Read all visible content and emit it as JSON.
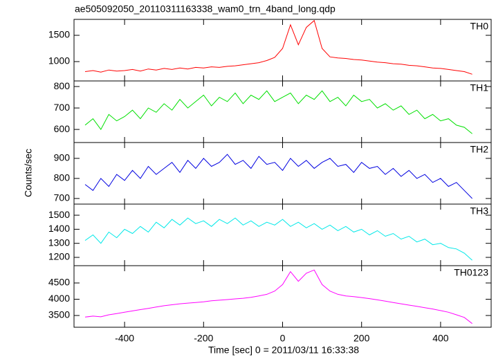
{
  "chart_data": [
    {
      "type": "line",
      "title": "ae505092050_20110311163338_wam0_trn_4band_long.qdp",
      "label": "TH0",
      "color": "#ff0000",
      "xlim": [
        -528,
        528
      ],
      "ylim": [
        632,
        1803
      ],
      "yticks": [
        1000,
        1500
      ],
      "x": [
        -500,
        -480,
        -460,
        -440,
        -420,
        -400,
        -380,
        -360,
        -340,
        -320,
        -300,
        -280,
        -260,
        -240,
        -220,
        -200,
        -180,
        -160,
        -140,
        -120,
        -100,
        -80,
        -60,
        -40,
        -20,
        0,
        20,
        40,
        60,
        80,
        100,
        120,
        140,
        160,
        180,
        200,
        220,
        240,
        260,
        280,
        300,
        320,
        340,
        360,
        380,
        400,
        420,
        440,
        460,
        480
      ],
      "values": [
        810,
        830,
        800,
        840,
        820,
        830,
        850,
        820,
        860,
        840,
        870,
        850,
        880,
        860,
        890,
        880,
        900,
        890,
        910,
        920,
        940,
        960,
        980,
        1020,
        1080,
        1250,
        1700,
        1320,
        1650,
        1780,
        1250,
        1090,
        1070,
        1060,
        1040,
        1030,
        1010,
        990,
        980,
        960,
        950,
        930,
        920,
        900,
        880,
        870,
        850,
        830,
        810,
        760
      ]
    },
    {
      "type": "line",
      "label": "TH1",
      "color": "#00e000",
      "xlim": [
        -528,
        528
      ],
      "ylim": [
        539,
        826
      ],
      "yticks": [
        600,
        700,
        800
      ],
      "x": [
        -500,
        -480,
        -460,
        -440,
        -420,
        -400,
        -380,
        -360,
        -340,
        -320,
        -300,
        -280,
        -260,
        -240,
        -220,
        -200,
        -180,
        -160,
        -140,
        -120,
        -100,
        -80,
        -60,
        -40,
        -20,
        0,
        20,
        40,
        60,
        80,
        100,
        120,
        140,
        160,
        180,
        200,
        220,
        240,
        260,
        280,
        300,
        320,
        340,
        360,
        380,
        400,
        420,
        440,
        460,
        480
      ],
      "values": [
        620,
        650,
        600,
        670,
        640,
        660,
        690,
        650,
        700,
        680,
        720,
        690,
        740,
        700,
        730,
        760,
        710,
        750,
        730,
        770,
        720,
        760,
        740,
        780,
        730,
        750,
        770,
        720,
        760,
        740,
        780,
        730,
        750,
        710,
        760,
        730,
        740,
        700,
        720,
        690,
        710,
        670,
        690,
        650,
        670,
        640,
        650,
        620,
        610,
        580
      ]
    },
    {
      "type": "line",
      "label": "TH2",
      "ylabel": "Counts/sec",
      "color": "#0000e0",
      "xlim": [
        -528,
        528
      ],
      "ylim": [
        672,
        979
      ],
      "yticks": [
        700,
        800,
        900
      ],
      "x": [
        -500,
        -480,
        -460,
        -440,
        -420,
        -400,
        -380,
        -360,
        -340,
        -320,
        -300,
        -280,
        -260,
        -240,
        -220,
        -200,
        -180,
        -160,
        -140,
        -120,
        -100,
        -80,
        -60,
        -40,
        -20,
        0,
        20,
        40,
        60,
        80,
        100,
        120,
        140,
        160,
        180,
        200,
        220,
        240,
        260,
        280,
        300,
        320,
        340,
        360,
        380,
        400,
        420,
        440,
        460,
        480
      ],
      "values": [
        770,
        740,
        800,
        760,
        820,
        790,
        840,
        800,
        860,
        820,
        850,
        880,
        830,
        890,
        850,
        900,
        860,
        880,
        920,
        870,
        890,
        850,
        910,
        870,
        880,
        840,
        900,
        860,
        890,
        850,
        880,
        900,
        860,
        870,
        830,
        880,
        850,
        860,
        820,
        850,
        810,
        840,
        800,
        820,
        780,
        800,
        760,
        780,
        740,
        700
      ]
    },
    {
      "type": "line",
      "label": "TH3",
      "color": "#00e8e8",
      "xlim": [
        -528,
        528
      ],
      "ylim": [
        1141,
        1579
      ],
      "yticks": [
        1200,
        1300,
        1400,
        1500
      ],
      "x": [
        -500,
        -480,
        -460,
        -440,
        -420,
        -400,
        -380,
        -360,
        -340,
        -320,
        -300,
        -280,
        -260,
        -240,
        -220,
        -200,
        -180,
        -160,
        -140,
        -120,
        -100,
        -80,
        -60,
        -40,
        -20,
        0,
        20,
        40,
        60,
        80,
        100,
        120,
        140,
        160,
        180,
        200,
        220,
        240,
        260,
        280,
        300,
        320,
        340,
        360,
        380,
        400,
        420,
        440,
        460,
        480
      ],
      "values": [
        1320,
        1360,
        1300,
        1380,
        1340,
        1400,
        1370,
        1420,
        1380,
        1450,
        1410,
        1470,
        1430,
        1480,
        1440,
        1460,
        1420,
        1470,
        1440,
        1480,
        1430,
        1460,
        1420,
        1450,
        1430,
        1470,
        1420,
        1450,
        1410,
        1440,
        1400,
        1430,
        1390,
        1420,
        1380,
        1400,
        1360,
        1390,
        1350,
        1370,
        1330,
        1350,
        1310,
        1330,
        1290,
        1300,
        1270,
        1260,
        1230,
        1180
      ]
    },
    {
      "type": "line",
      "label": "TH0123",
      "xlabel": "Time [sec] 0 = 2011/03/11 16:33:38",
      "color": "#ff00ff",
      "xlim": [
        -528,
        528
      ],
      "ylim": [
        3138,
        5032
      ],
      "yticks": [
        3500,
        4000,
        4500
      ],
      "xticks": [
        -400,
        -200,
        0,
        200,
        400
      ],
      "x": [
        -500,
        -480,
        -460,
        -440,
        -420,
        -400,
        -380,
        -360,
        -340,
        -320,
        -300,
        -280,
        -260,
        -240,
        -220,
        -200,
        -180,
        -160,
        -140,
        -120,
        -100,
        -80,
        -60,
        -40,
        -20,
        0,
        20,
        40,
        60,
        80,
        100,
        120,
        140,
        160,
        180,
        200,
        220,
        240,
        260,
        280,
        300,
        320,
        340,
        360,
        380,
        400,
        420,
        440,
        460,
        480
      ],
      "values": [
        3450,
        3480,
        3460,
        3520,
        3560,
        3600,
        3640,
        3680,
        3720,
        3760,
        3800,
        3830,
        3860,
        3880,
        3900,
        3920,
        3950,
        3970,
        3990,
        4010,
        4030,
        4060,
        4100,
        4150,
        4250,
        4450,
        4850,
        4550,
        4800,
        4900,
        4450,
        4250,
        4150,
        4100,
        4080,
        4050,
        4020,
        3980,
        3940,
        3900,
        3860,
        3820,
        3780,
        3740,
        3700,
        3650,
        3600,
        3520,
        3440,
        3250
      ]
    }
  ]
}
